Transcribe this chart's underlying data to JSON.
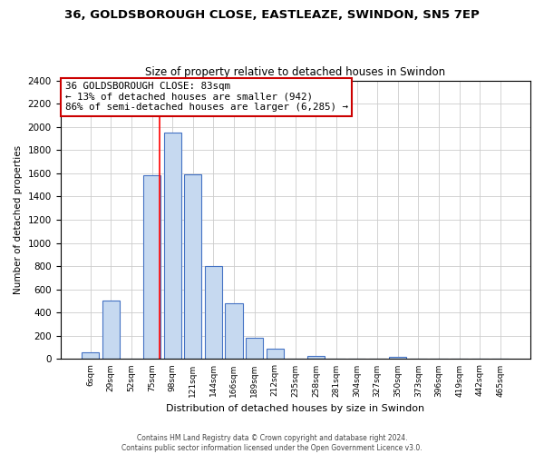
{
  "title": "36, GOLDSBOROUGH CLOSE, EASTLEAZE, SWINDON, SN5 7EP",
  "subtitle": "Size of property relative to detached houses in Swindon",
  "xlabel": "Distribution of detached houses by size in Swindon",
  "ylabel": "Number of detached properties",
  "bar_color": "#c6d9f0",
  "bar_edge_color": "#4472c4",
  "categories": [
    "6sqm",
    "29sqm",
    "52sqm",
    "75sqm",
    "98sqm",
    "121sqm",
    "144sqm",
    "166sqm",
    "189sqm",
    "212sqm",
    "235sqm",
    "258sqm",
    "281sqm",
    "304sqm",
    "327sqm",
    "350sqm",
    "373sqm",
    "396sqm",
    "419sqm",
    "442sqm",
    "465sqm"
  ],
  "values": [
    55,
    500,
    0,
    1580,
    1950,
    1590,
    800,
    480,
    185,
    90,
    0,
    30,
    0,
    0,
    0,
    20,
    0,
    0,
    0,
    0,
    0
  ],
  "ylim": [
    0,
    2400
  ],
  "yticks": [
    0,
    200,
    400,
    600,
    800,
    1000,
    1200,
    1400,
    1600,
    1800,
    2000,
    2200,
    2400
  ],
  "property_line_bin_index": 3.37,
  "annotation_title": "36 GOLDSBOROUGH CLOSE: 83sqm",
  "annotation_line1": "← 13% of detached houses are smaller (942)",
  "annotation_line2": "86% of semi-detached houses are larger (6,285) →",
  "annotation_box_color": "#ffffff",
  "annotation_box_edge": "#cc0000",
  "footer_line1": "Contains HM Land Registry data © Crown copyright and database right 2024.",
  "footer_line2": "Contains public sector information licensed under the Open Government Licence v3.0."
}
